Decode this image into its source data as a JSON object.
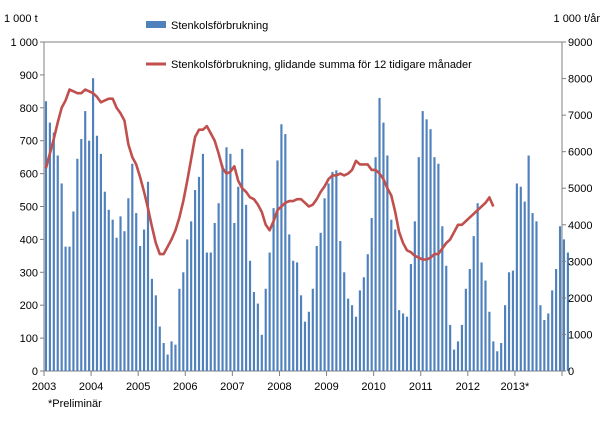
{
  "chart_data": {
    "type": "bar+line",
    "left_unit": "1 000 t",
    "right_unit": "1 000 t/år",
    "y_left_ticks": [
      0,
      100,
      200,
      300,
      400,
      500,
      600,
      700,
      800,
      900,
      1000
    ],
    "y_left_labels": [
      "0",
      "100",
      "200",
      "300",
      "400",
      "500",
      "600",
      "700",
      "800",
      "900",
      "1 000"
    ],
    "y_right_ticks": [
      0,
      1000,
      2000,
      3000,
      4000,
      5000,
      6000,
      7000,
      8000,
      9000
    ],
    "y_right_labels": [
      "0",
      "1000",
      "2000",
      "3000",
      "4000",
      "5000",
      "6000",
      "7000",
      "8000",
      "9000"
    ],
    "ylim_left": [
      0,
      1000
    ],
    "ylim_right": [
      0,
      9000
    ],
    "x_year_labels": [
      "2003",
      "2004",
      "2005",
      "2006",
      "2007",
      "2008",
      "2009",
      "2010",
      "2011",
      "2012",
      "2013*"
    ],
    "footnote": "*Preliminär",
    "legend": [
      {
        "name": "Stenkolsförbrukning",
        "color": "#4F81BD",
        "kind": "bar"
      },
      {
        "name": "Stenkolsförbrukning, glidande summa för 12 tidigare månader",
        "color": "#C0504D",
        "kind": "line"
      }
    ],
    "bar_series": {
      "name": "Stenkolsförbrukning",
      "values": [
        820,
        755,
        725,
        655,
        570,
        378,
        378,
        485,
        645,
        705,
        790,
        700,
        890,
        715,
        660,
        545,
        490,
        460,
        405,
        470,
        425,
        525,
        630,
        480,
        380,
        430,
        575,
        280,
        230,
        135,
        85,
        50,
        90,
        80,
        250,
        300,
        400,
        455,
        550,
        590,
        660,
        360,
        360,
        450,
        510,
        625,
        680,
        660,
        450,
        560,
        675,
        505,
        335,
        240,
        205,
        110,
        250,
        360,
        495,
        640,
        750,
        720,
        415,
        335,
        330,
        230,
        150,
        180,
        250,
        380,
        420,
        525,
        570,
        605,
        610,
        395,
        300,
        220,
        200,
        165,
        245,
        285,
        355,
        465,
        650,
        830,
        755,
        655,
        460,
        430,
        185,
        175,
        165,
        325,
        455,
        650,
        790,
        765,
        735,
        650,
        630,
        440,
        320,
        140,
        65,
        90,
        140,
        250,
        310,
        410,
        510,
        330,
        275,
        180,
        90,
        60,
        85,
        200,
        300,
        305,
        570,
        560,
        515,
        655,
        480,
        455,
        200,
        155,
        175,
        245,
        310,
        440,
        400,
        360
      ]
    },
    "line_series": {
      "name": "Stenkolsförbrukning, glidande summa för 12 tidigare månader",
      "values": [
        5550,
        5950,
        6350,
        6800,
        7200,
        7400,
        7700,
        7650,
        7600,
        7600,
        7700,
        7650,
        7600,
        7500,
        7350,
        7400,
        7450,
        7450,
        7200,
        7050,
        6850,
        6200,
        5850,
        5650,
        5300,
        4900,
        4450,
        3950,
        3500,
        3200,
        3200,
        3400,
        3600,
        3850,
        4200,
        4650,
        5200,
        5800,
        6400,
        6600,
        6600,
        6700,
        6500,
        6300,
        5950,
        5550,
        5400,
        5450,
        5600,
        5200,
        5000,
        4900,
        4750,
        4700,
        4550,
        4350,
        4000,
        3850,
        4100,
        4400,
        4500,
        4600,
        4650,
        4650,
        4700,
        4700,
        4600,
        4500,
        4550,
        4700,
        4900,
        5050,
        5250,
        5350,
        5350,
        5400,
        5350,
        5400,
        5500,
        5750,
        5650,
        5650,
        5650,
        5500,
        5500,
        5400,
        5250,
        5000,
        4800,
        4350,
        3800,
        3500,
        3300,
        3250,
        3150,
        3100,
        3050,
        3050,
        3100,
        3200,
        3200,
        3350,
        3500,
        3600,
        3800,
        4000,
        4000,
        4100,
        4200,
        4300,
        4400,
        4500,
        4600,
        4750,
        4500
      ]
    }
  }
}
